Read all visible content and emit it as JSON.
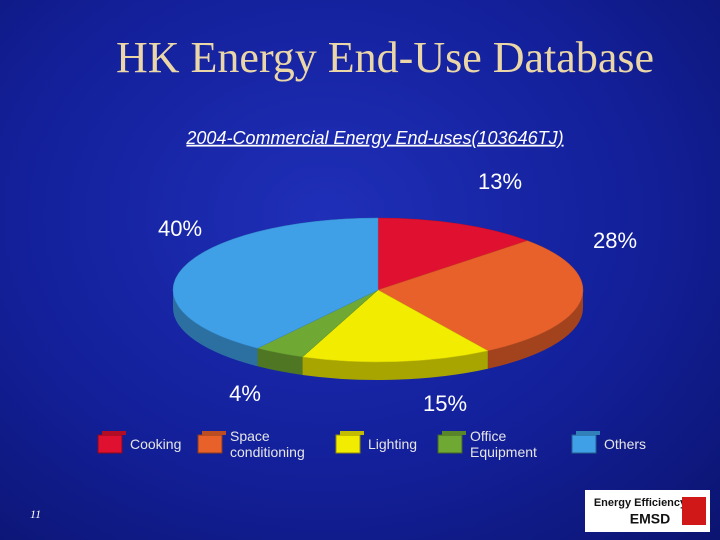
{
  "slide": {
    "title": "HK Energy End-Use Database",
    "page_number": "11",
    "logo": [
      "Energy Efficiency",
      "EMSD"
    ]
  },
  "chart_data": {
    "type": "pie",
    "title": "2004-Commercial Energy End-uses(103646TJ)",
    "categories": [
      "Cooking",
      "Space conditioning",
      "Lighting",
      "Office Equipment",
      "Others"
    ],
    "values": [
      13,
      28,
      15,
      4,
      40
    ],
    "value_labels": [
      "13%",
      "28%",
      "15%",
      "4%",
      "40%"
    ],
    "colors": [
      "#e01030",
      "#e8602a",
      "#f2ec00",
      "#6fa832",
      "#3fa0e8"
    ]
  }
}
